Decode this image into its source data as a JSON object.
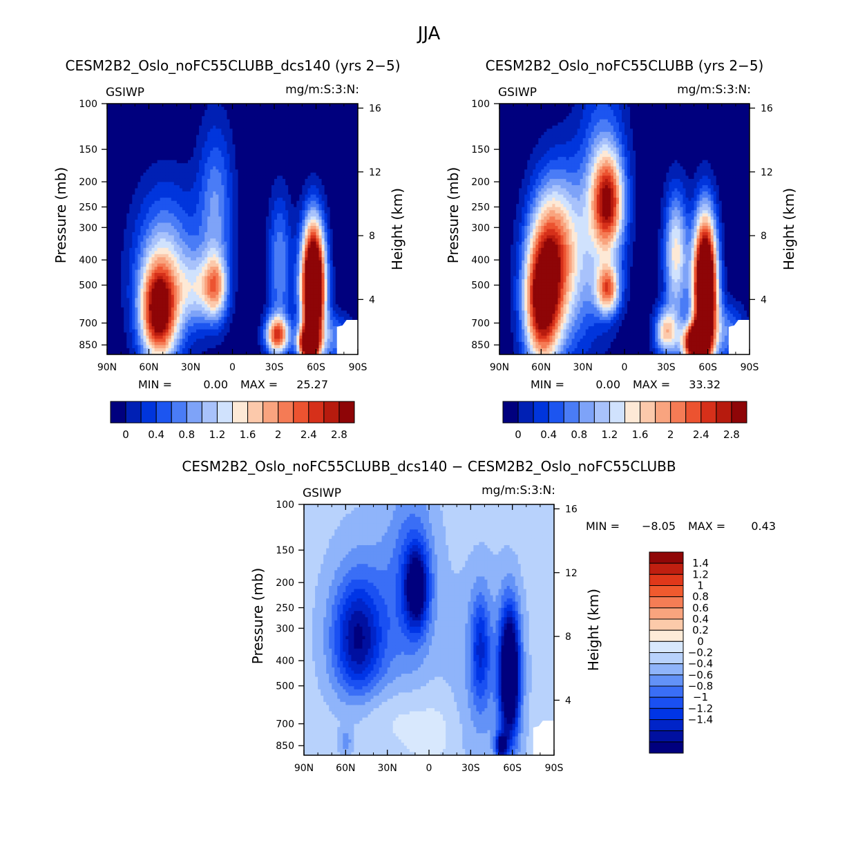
{
  "title": "JJA",
  "colors": {
    "cmap_abs": [
      "#00007e",
      "#0020b4",
      "#0035dc",
      "#1c55f0",
      "#4a7cf6",
      "#7ea3f8",
      "#a8c2fb",
      "#d0e2fd",
      "#fde9d6",
      "#fcc9ab",
      "#f9a47f",
      "#f57b55",
      "#ec5330",
      "#d6301a",
      "#b71b0e",
      "#8e0507"
    ],
    "cmap_diff": [
      "#00007e",
      "#0010a0",
      "#0024c8",
      "#0035e6",
      "#1a50f2",
      "#3a6ef6",
      "#6392f7",
      "#8fb4fa",
      "#b8d2fc",
      "#d8e8fd",
      "#fdebd8",
      "#fccaaa",
      "#f9a47e",
      "#f57d55",
      "#f05a2e",
      "#e0381a",
      "#c01f10",
      "#900707"
    ]
  },
  "chart_data": [
    {
      "id": "panel_a",
      "type": "heatmap",
      "title": "CESM2B2_Oslo_noFC55CLUBB_dcs140 (yrs 2−5)",
      "variable": "GSIWP",
      "units": "mg/m:S:3:N:",
      "xlabel": "",
      "ylabel": "Pressure (mb)",
      "ylabel_right": "Height (km)",
      "x_ticks": [
        "90N",
        "60N",
        "30N",
        "0",
        "30S",
        "60S",
        "90S"
      ],
      "y_ticks": [
        "100",
        "150",
        "200",
        "250",
        "300",
        "400",
        "500",
        "700",
        "850"
      ],
      "y_ticks_right": [
        "16",
        "12",
        "8",
        "4"
      ],
      "min_label": "MIN =",
      "min_value": "0.00",
      "max_label": "MAX =",
      "max_value": "25.27",
      "colorbar_labels": [
        "0",
        "0.4",
        "0.8",
        "1.2",
        "1.6",
        "2",
        "2.4",
        "2.8"
      ],
      "levels": [
        -0.2,
        0,
        0.2,
        0.4,
        0.6,
        0.8,
        1.0,
        1.2,
        1.4,
        1.6,
        1.8,
        2.0,
        2.2,
        2.4,
        2.6,
        2.8
      ],
      "background_value": -0.4,
      "blobs": [
        {
          "lat": 53,
          "p": 640,
          "dlat": 9,
          "dp": 0.3,
          "amp": 2.8
        },
        {
          "lat": 48,
          "p": 430,
          "dlat": 16,
          "dp": 0.5,
          "amp": 1.3
        },
        {
          "lat": 25,
          "p": 520,
          "dlat": 10,
          "dp": 0.22,
          "amp": 0.9
        },
        {
          "lat": 12,
          "p": 510,
          "dlat": 6,
          "dp": 0.2,
          "amp": 1.5
        },
        {
          "lat": 12,
          "p": 260,
          "dlat": 9,
          "dp": 0.55,
          "amp": 1.0
        },
        {
          "lat": -34,
          "p": 420,
          "dlat": 6,
          "dp": 0.45,
          "amp": 1.0
        },
        {
          "lat": -32,
          "p": 780,
          "dlat": 6,
          "dp": 0.12,
          "amp": 2.4
        },
        {
          "lat": -58,
          "p": 510,
          "dlat": 6,
          "dp": 0.4,
          "amp": 5.0
        },
        {
          "lat": -54,
          "p": 840,
          "dlat": 5,
          "dp": 0.1,
          "amp": 3.0
        },
        {
          "lat": -75,
          "p": 800,
          "dlat": 8,
          "dp": 0.15,
          "amp": 0.9
        }
      ]
    },
    {
      "id": "panel_b",
      "type": "heatmap",
      "title": "CESM2B2_Oslo_noFC55CLUBB (yrs 2−5)",
      "variable": "GSIWP",
      "units": "mg/m:S:3:N:",
      "xlabel": "",
      "ylabel": "Pressure (mb)",
      "ylabel_right": "Height (km)",
      "x_ticks": [
        "90N",
        "60N",
        "30N",
        "0",
        "30S",
        "60S",
        "90S"
      ],
      "y_ticks": [
        "100",
        "150",
        "200",
        "250",
        "300",
        "400",
        "500",
        "700",
        "850"
      ],
      "y_ticks_right": [
        "16",
        "12",
        "8",
        "4"
      ],
      "min_label": "MIN =",
      "min_value": "0.00",
      "max_label": "MAX =",
      "max_value": "33.32",
      "colorbar_labels": [
        "0",
        "0.4",
        "0.8",
        "1.2",
        "1.6",
        "2",
        "2.4",
        "2.8"
      ],
      "levels": [
        -0.2,
        0,
        0.2,
        0.4,
        0.6,
        0.8,
        1.0,
        1.2,
        1.4,
        1.6,
        1.8,
        2.0,
        2.2,
        2.4,
        2.6,
        2.8
      ],
      "background_value": -0.4,
      "blobs": [
        {
          "lat": 60,
          "p": 600,
          "dlat": 9,
          "dp": 0.4,
          "amp": 2.6
        },
        {
          "lat": 52,
          "p": 380,
          "dlat": 11,
          "dp": 0.45,
          "amp": 1.6
        },
        {
          "lat": 40,
          "p": 400,
          "dlat": 18,
          "dp": 0.6,
          "amp": 1.1
        },
        {
          "lat": 12,
          "p": 240,
          "dlat": 8,
          "dp": 0.3,
          "amp": 2.3
        },
        {
          "lat": 12,
          "p": 520,
          "dlat": 6,
          "dp": 0.15,
          "amp": 2.0
        },
        {
          "lat": 15,
          "p": 180,
          "dlat": 12,
          "dp": 0.7,
          "amp": 0.8
        },
        {
          "lat": -37,
          "p": 380,
          "dlat": 6,
          "dp": 0.4,
          "amp": 1.7
        },
        {
          "lat": -30,
          "p": 760,
          "dlat": 6,
          "dp": 0.15,
          "amp": 1.8
        },
        {
          "lat": -58,
          "p": 520,
          "dlat": 6,
          "dp": 0.45,
          "amp": 5.0
        },
        {
          "lat": -50,
          "p": 840,
          "dlat": 6,
          "dp": 0.12,
          "amp": 3.5
        },
        {
          "lat": -75,
          "p": 760,
          "dlat": 9,
          "dp": 0.18,
          "amp": 0.9
        }
      ]
    },
    {
      "id": "panel_diff",
      "type": "heatmap",
      "title": "CESM2B2_Oslo_noFC55CLUBB_dcs140 − CESM2B2_Oslo_noFC55CLUBB",
      "variable": "GSIWP",
      "units": "mg/m:S:3:N:",
      "xlabel": "",
      "ylabel": "Pressure (mb)",
      "ylabel_right": "Height (km)",
      "x_ticks": [
        "90N",
        "60N",
        "30N",
        "0",
        "30S",
        "60S",
        "90S"
      ],
      "y_ticks": [
        "100",
        "150",
        "200",
        "250",
        "300",
        "400",
        "500",
        "700",
        "850"
      ],
      "y_ticks_right": [
        "16",
        "12",
        "8",
        "4"
      ],
      "min_label": "MIN =",
      "min_value": "−8.05",
      "max_label": "MAX =",
      "max_value": "0.43",
      "colorbar_labels": [
        "1.4",
        "1.2",
        "1",
        "0.8",
        "0.6",
        "0.4",
        "0.2",
        "0",
        "−0.2",
        "−0.4",
        "−0.6",
        "−0.8",
        "−1",
        "−1.2",
        "−1.4"
      ],
      "levels": [
        -1.6,
        -1.4,
        -1.2,
        -1.0,
        -0.8,
        -0.6,
        -0.4,
        -0.2,
        0,
        0.2,
        0.4,
        0.6,
        0.8,
        1.0,
        1.2,
        1.4,
        1.6
      ],
      "background_value": -0.1,
      "blobs": [
        {
          "lat": 52,
          "p": 330,
          "dlat": 12,
          "dp": 0.35,
          "amp": -1.1
        },
        {
          "lat": 44,
          "p": 300,
          "dlat": 20,
          "dp": 0.6,
          "amp": -0.5
        },
        {
          "lat": 9,
          "p": 210,
          "dlat": 6,
          "dp": 0.25,
          "amp": -1.5
        },
        {
          "lat": 12,
          "p": 180,
          "dlat": 12,
          "dp": 0.6,
          "amp": -0.6
        },
        {
          "lat": -37,
          "p": 360,
          "dlat": 5,
          "dp": 0.35,
          "amp": -0.9
        },
        {
          "lat": -58,
          "p": 450,
          "dlat": 5,
          "dp": 0.4,
          "amp": -2.5
        },
        {
          "lat": -40,
          "p": 450,
          "dlat": 20,
          "dp": 0.7,
          "amp": -0.3
        },
        {
          "lat": 40,
          "p": 640,
          "dlat": 18,
          "dp": 0.2,
          "amp": 0.25
        },
        {
          "lat": 10,
          "p": 720,
          "dlat": 14,
          "dp": 0.25,
          "amp": 0.18
        },
        {
          "lat": -10,
          "p": 750,
          "dlat": 10,
          "dp": 0.25,
          "amp": 0.15
        },
        {
          "lat": 60,
          "p": 820,
          "dlat": 3,
          "dp": 0.08,
          "amp": -0.4
        },
        {
          "lat": -52,
          "p": 850,
          "dlat": 3,
          "dp": 0.08,
          "amp": -1.5
        }
      ]
    }
  ]
}
